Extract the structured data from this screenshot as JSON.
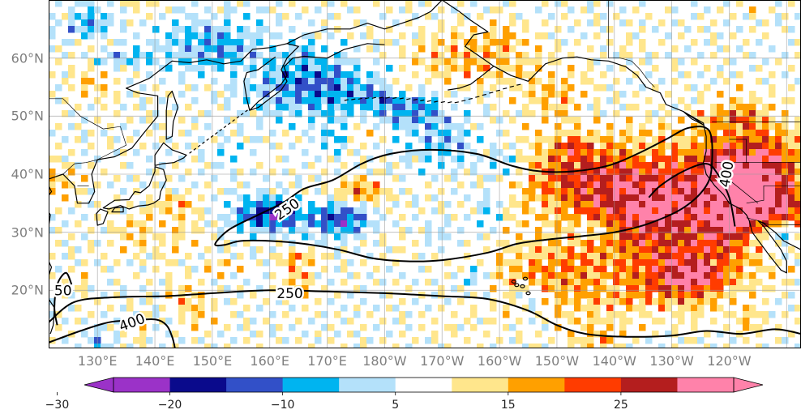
{
  "map": {
    "lat_labels": [
      {
        "text": "60°N",
        "lat": 60
      },
      {
        "text": "50°N",
        "lat": 50
      },
      {
        "text": "40°N",
        "lat": 40
      },
      {
        "text": "30°N",
        "lat": 30
      },
      {
        "text": "20°N",
        "lat": 20
      }
    ],
    "lon_labels": [
      {
        "text": "130°E",
        "lon": 130
      },
      {
        "text": "140°E",
        "lon": 140
      },
      {
        "text": "150°E",
        "lon": 150
      },
      {
        "text": "160°E",
        "lon": 160
      },
      {
        "text": "170°E",
        "lon": 170
      },
      {
        "text": "180°W",
        "lon": 180
      },
      {
        "text": "170°W",
        "lon": 190
      },
      {
        "text": "160°W",
        "lon": 200
      },
      {
        "text": "150°W",
        "lon": 210
      },
      {
        "text": "140°W",
        "lon": 220
      },
      {
        "text": "130°W",
        "lon": 230
      },
      {
        "text": "120°W",
        "lon": 240
      }
    ],
    "extent": {
      "lon_min": 121.5,
      "lon_max": 252.5,
      "lat_min": 10,
      "lat_max": 70
    },
    "contour_labels": [
      {
        "text": "250",
        "lon": 163,
        "lat": 34
      },
      {
        "text": "250",
        "lon": 163.5,
        "lat": 19.5
      },
      {
        "text": "400",
        "lon": 136,
        "lat": 14.5
      },
      {
        "text": "400",
        "lon": 239.5,
        "lat": 40
      },
      {
        "text": "50",
        "lon": 124,
        "lat": 20
      }
    ]
  },
  "colorbar": {
    "levels": [
      -30,
      -25,
      -20,
      -15,
      -10,
      -5,
      5,
      10,
      15,
      20,
      25,
      30
    ],
    "colors": [
      "#9b32c8",
      "#0a0a8c",
      "#3250c8",
      "#00b4f0",
      "#b4e1fa",
      "#ffffff",
      "#ffe68c",
      "#ffa000",
      "#ff3c00",
      "#b41e1e",
      "#ff82aa"
    ],
    "extend_low_color": "#9b32c8",
    "extend_high_color": "#ff82aa",
    "tick_labels": [
      {
        "text": "−30",
        "value": -30
      },
      {
        "text": "−20",
        "value": -20
      },
      {
        "text": "−10",
        "value": -10
      },
      {
        "text": "5",
        "value": 5
      },
      {
        "text": "15",
        "value": 15
      },
      {
        "text": "25",
        "value": 25
      }
    ]
  }
}
